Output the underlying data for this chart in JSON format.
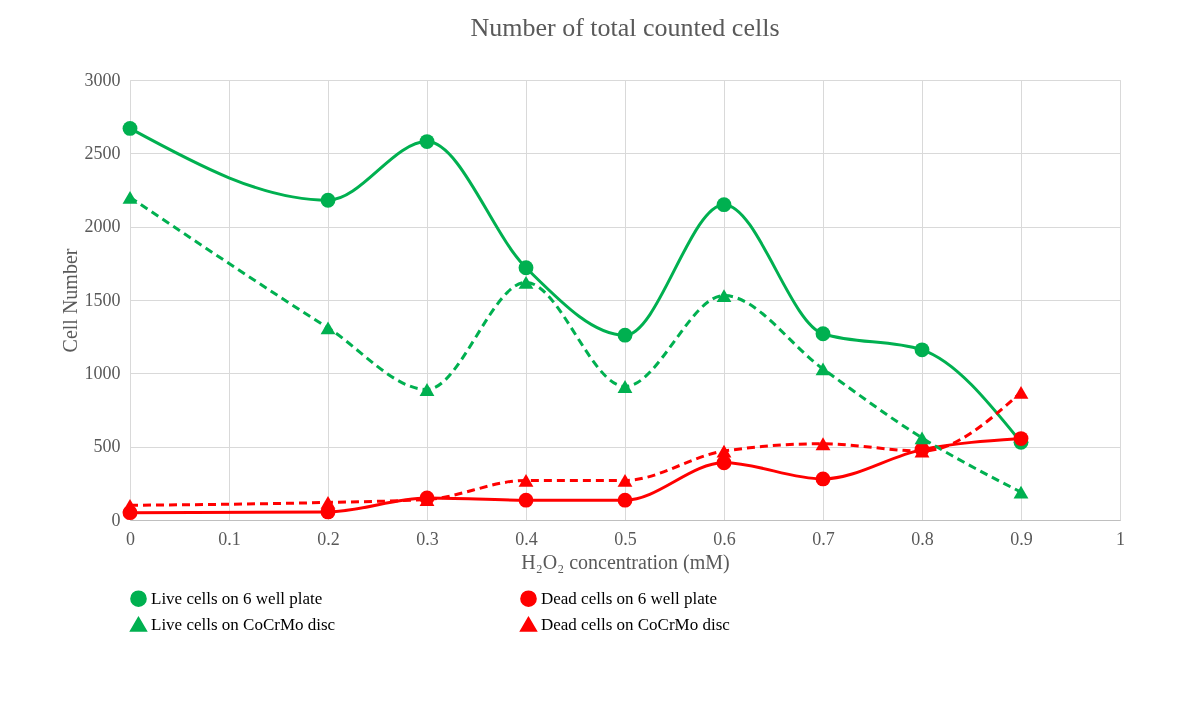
{
  "chart_data": {
    "type": "line",
    "title": "Number of  total counted cells",
    "xlabel": "H₂O₂ concentration (mM)",
    "ylabel": "Cell Number",
    "x": [
      0,
      0.2,
      0.3,
      0.4,
      0.5,
      0.6,
      0.7,
      0.8,
      0.9
    ],
    "series": [
      {
        "name": "Live cells on 6 well plate",
        "color": "#00b050",
        "marker": "circle",
        "line_style": "solid",
        "values": [
          2670,
          2180,
          2580,
          1720,
          1260,
          2150,
          1270,
          1160,
          530
        ]
      },
      {
        "name": "Dead cells on 6 well plate",
        "color": "#ff0000",
        "marker": "circle",
        "line_style": "solid",
        "values": [
          50,
          55,
          150,
          135,
          135,
          390,
          280,
          480,
          555
        ]
      },
      {
        "name": "Live cells on CoCrMo disc",
        "color": "#00b050",
        "marker": "triangle",
        "line_style": "dashed",
        "values": [
          2200,
          1310,
          890,
          1620,
          910,
          1530,
          1030,
          560,
          190
        ]
      },
      {
        "name": "Dead cells on CoCrMo disc",
        "color": "#ff0000",
        "marker": "triangle",
        "line_style": "dashed",
        "values": [
          100,
          120,
          140,
          270,
          270,
          470,
          520,
          470,
          870
        ]
      }
    ],
    "xlim": [
      0,
      1
    ],
    "xticks": [
      0,
      0.1,
      0.2,
      0.3,
      0.4,
      0.5,
      0.6,
      0.7,
      0.8,
      0.9,
      1
    ],
    "ylim": [
      0,
      3000
    ],
    "yticks": [
      0,
      500,
      1000,
      1500,
      2000,
      2500,
      3000
    ],
    "grid": true,
    "legend": "bottom"
  }
}
